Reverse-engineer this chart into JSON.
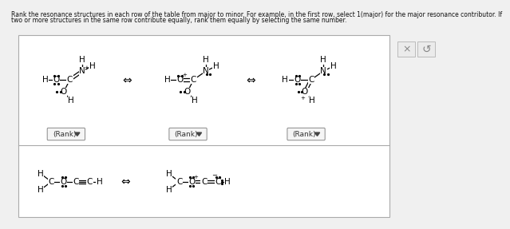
{
  "title_line1": "Rank the resonance structures in each row of the table from major to minor. For example, in the first row, select 1(major) for the major resonance contributor. If",
  "title_line2": "two or more structures in the same row contribute equally, rank them equally by selecting the same number.",
  "bg_color": "#f0f0f0",
  "table_bg": "#ffffff",
  "border_color": "#aaaaaa",
  "text_color": "#111111",
  "rank_box_color": "#e8e8e8",
  "double_arrow": "⇔",
  "rank_label": "(Rank)"
}
